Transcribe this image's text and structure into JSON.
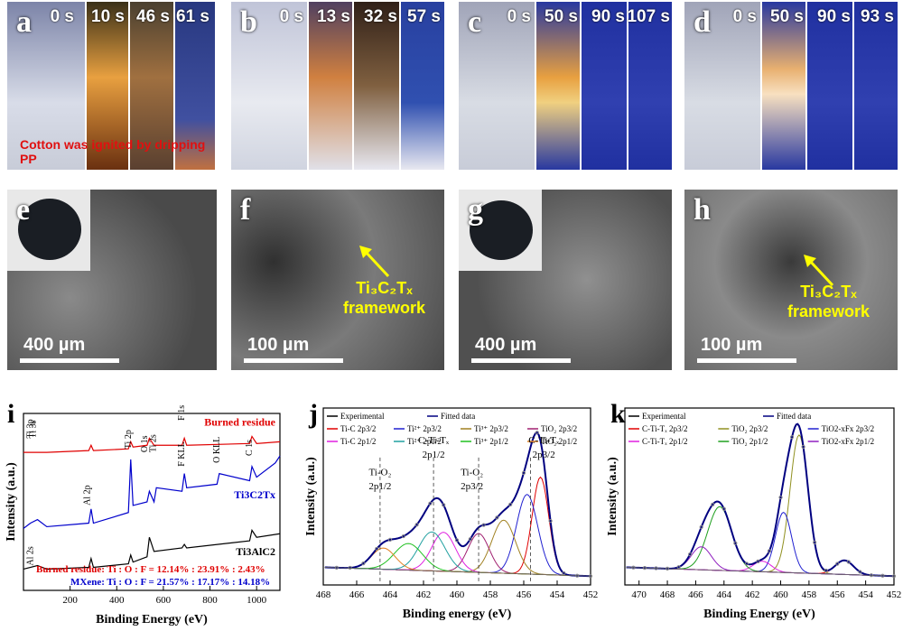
{
  "flame_panels": [
    {
      "label": "a",
      "times": [
        "0 s",
        "10 s",
        "46 s",
        "61 s"
      ],
      "note": "Cotton was ignited by dripping PP"
    },
    {
      "label": "b",
      "times": [
        "0 s",
        "13 s",
        "32 s",
        "57 s"
      ]
    },
    {
      "label": "c",
      "times": [
        "0 s",
        "50 s",
        "90 s",
        "107 s"
      ]
    },
    {
      "label": "d",
      "times": [
        "0 s",
        "50 s",
        "90 s",
        "93 s"
      ]
    }
  ],
  "sem_panels": [
    {
      "label": "e",
      "scale": "400 µm"
    },
    {
      "label": "f",
      "scale": "100 µm",
      "annotation_line1": "Ti₃C₂Tₓ",
      "annotation_line2": "framework"
    },
    {
      "label": "g",
      "scale": "400 µm"
    },
    {
      "label": "h",
      "scale": "100 µm",
      "annotation_line1": "Ti₃C₂Tₓ",
      "annotation_line2": "framework"
    }
  ],
  "chart_data": [
    {
      "type": "line",
      "label": "i",
      "xlabel": "Binding Energy (eV)",
      "ylabel": "Intensity (a.u.)",
      "xlim": [
        0,
        1100
      ],
      "xticks": [
        200,
        400,
        600,
        800,
        1000
      ],
      "series": [
        {
          "name": "Burned residue",
          "color": "#e00000",
          "x": [
            0,
            100,
            280,
            290,
            300,
            450,
            460,
            470,
            530,
            540,
            560,
            680,
            690,
            700,
            970,
            980,
            1000,
            1100
          ],
          "y": [
            0.78,
            0.78,
            0.79,
            0.82,
            0.79,
            0.8,
            0.84,
            0.81,
            0.82,
            0.86,
            0.82,
            0.82,
            0.86,
            0.82,
            0.83,
            0.87,
            0.83,
            0.84
          ]
        },
        {
          "name": "Ti3C2Tx",
          "color": "#0000cc",
          "x": [
            0,
            30,
            60,
            100,
            280,
            290,
            300,
            450,
            460,
            470,
            530,
            540,
            560,
            570,
            680,
            690,
            700,
            830,
            840,
            970,
            980,
            1000,
            1080,
            1100
          ],
          "y": [
            0.35,
            0.38,
            0.4,
            0.36,
            0.38,
            0.46,
            0.38,
            0.44,
            0.74,
            0.48,
            0.5,
            0.56,
            0.5,
            0.58,
            0.56,
            0.66,
            0.58,
            0.6,
            0.66,
            0.62,
            0.7,
            0.64,
            0.72,
            0.76
          ]
        },
        {
          "name": "Ti3AlC2",
          "color": "#000000",
          "x": [
            0,
            60,
            100,
            280,
            290,
            300,
            450,
            460,
            470,
            530,
            540,
            560,
            680,
            690,
            700,
            970,
            980,
            1000,
            1100
          ],
          "y": [
            0.12,
            0.14,
            0.12,
            0.13,
            0.18,
            0.13,
            0.15,
            0.2,
            0.16,
            0.19,
            0.3,
            0.22,
            0.24,
            0.26,
            0.24,
            0.28,
            0.34,
            0.3,
            0.32
          ]
        }
      ],
      "peak_labels": [
        "F 1s",
        "Ti 3p",
        "Ti 3s",
        "Ti 2p",
        "O 1s",
        "Ti 2s",
        "F KLL",
        "O KLL",
        "C 1s",
        "Al 2p",
        "Al 2s"
      ],
      "ratio_burned": "Burned residue:  Ti : O : F = 12.14% : 23.91% : 2.43%",
      "ratio_mxene": "MXene:  Ti : O : F = 21.57% : 17.17% : 14.18%"
    },
    {
      "type": "line",
      "label": "j",
      "xlabel": "Binding energy (eV)",
      "ylabel": "Intensity (a.u.)",
      "xlim": [
        468,
        452
      ],
      "xticks": [
        468,
        466,
        464,
        462,
        460,
        458,
        456,
        454,
        452
      ],
      "legend": [
        "Experimental",
        "Fitted data",
        "Ti-C 2p3/2",
        "Ti²⁺ 2p3/2",
        "Ti³⁺ 2p3/2",
        "TiO₂ 2p3/2",
        "Ti-C 2p1/2",
        "Ti²⁺ 2p1/2",
        "Ti³⁺ 2p1/2",
        "TiO₂ 2p1/2"
      ],
      "annotations": [
        "Ti-O₂",
        "2p1/2",
        "C-Ti-Tₓ",
        "2p1/2",
        "Ti-O₂",
        "2p3/2",
        "C-Ti-Tₓ",
        "2p3/2"
      ],
      "peaks": [
        {
          "name": "Ti-C 2p3/2",
          "color": "#e00000",
          "center": 455.0,
          "height": 0.55,
          "width": 0.7
        },
        {
          "name": "Ti2+ 2p3/2",
          "color": "#2020d0",
          "center": 455.8,
          "height": 0.45,
          "width": 0.9
        },
        {
          "name": "Ti3+ 2p3/2",
          "color": "#a08020",
          "center": 457.2,
          "height": 0.3,
          "width": 1.0
        },
        {
          "name": "TiO2 2p3/2",
          "color": "#a02070",
          "center": 458.7,
          "height": 0.22,
          "width": 0.9
        },
        {
          "name": "Ti-C 2p1/2",
          "color": "#e020e0",
          "center": 460.8,
          "height": 0.22,
          "width": 1.0
        },
        {
          "name": "Ti2+ 2p1/2",
          "color": "#20a0a0",
          "center": 461.5,
          "height": 0.22,
          "width": 1.1
        },
        {
          "name": "Ti3+ 2p1/2",
          "color": "#20c020",
          "center": 462.9,
          "height": 0.15,
          "width": 1.2
        },
        {
          "name": "TiO2 2p1/2",
          "color": "#e08020",
          "center": 464.4,
          "height": 0.12,
          "width": 1.0
        }
      ]
    },
    {
      "type": "line",
      "label": "k",
      "xlabel": "Binding Energy (eV)",
      "ylabel": "Intensity (a.u.)",
      "xlim": [
        471,
        452
      ],
      "xticks": [
        470,
        468,
        466,
        464,
        462,
        460,
        458,
        456,
        454,
        452
      ],
      "legend": [
        "Experimental",
        "Fitted data",
        "C-Ti-Tₓ 2p3/2",
        "TiO₂ 2p3/2",
        "TiO2-xFx 2p3/2",
        "C-Ti-Tₓ 2p1/2",
        "TiO₂ 2p1/2",
        "TiO2-xFx 2p1/2"
      ],
      "peaks": [
        {
          "name": "C-Ti-Tx 2p3/2",
          "color": "#e00000",
          "center": 455.5,
          "height": 0.08,
          "width": 0.9
        },
        {
          "name": "TiO2 2p3/2",
          "color": "#909020",
          "center": 458.7,
          "height": 0.78,
          "width": 0.9
        },
        {
          "name": "TiO2-xFx 2p3/2",
          "color": "#2020d0",
          "center": 459.8,
          "height": 0.34,
          "width": 0.8
        },
        {
          "name": "C-Ti-Tx 2p1/2",
          "color": "#e020e0",
          "center": 461.3,
          "height": 0.06,
          "width": 0.9
        },
        {
          "name": "TiO2 2p1/2",
          "color": "#20a020",
          "center": 464.3,
          "height": 0.36,
          "width": 1.2
        },
        {
          "name": "TiO2-xFx 2p1/2",
          "color": "#9020c0",
          "center": 465.6,
          "height": 0.13,
          "width": 1.0
        }
      ]
    }
  ]
}
